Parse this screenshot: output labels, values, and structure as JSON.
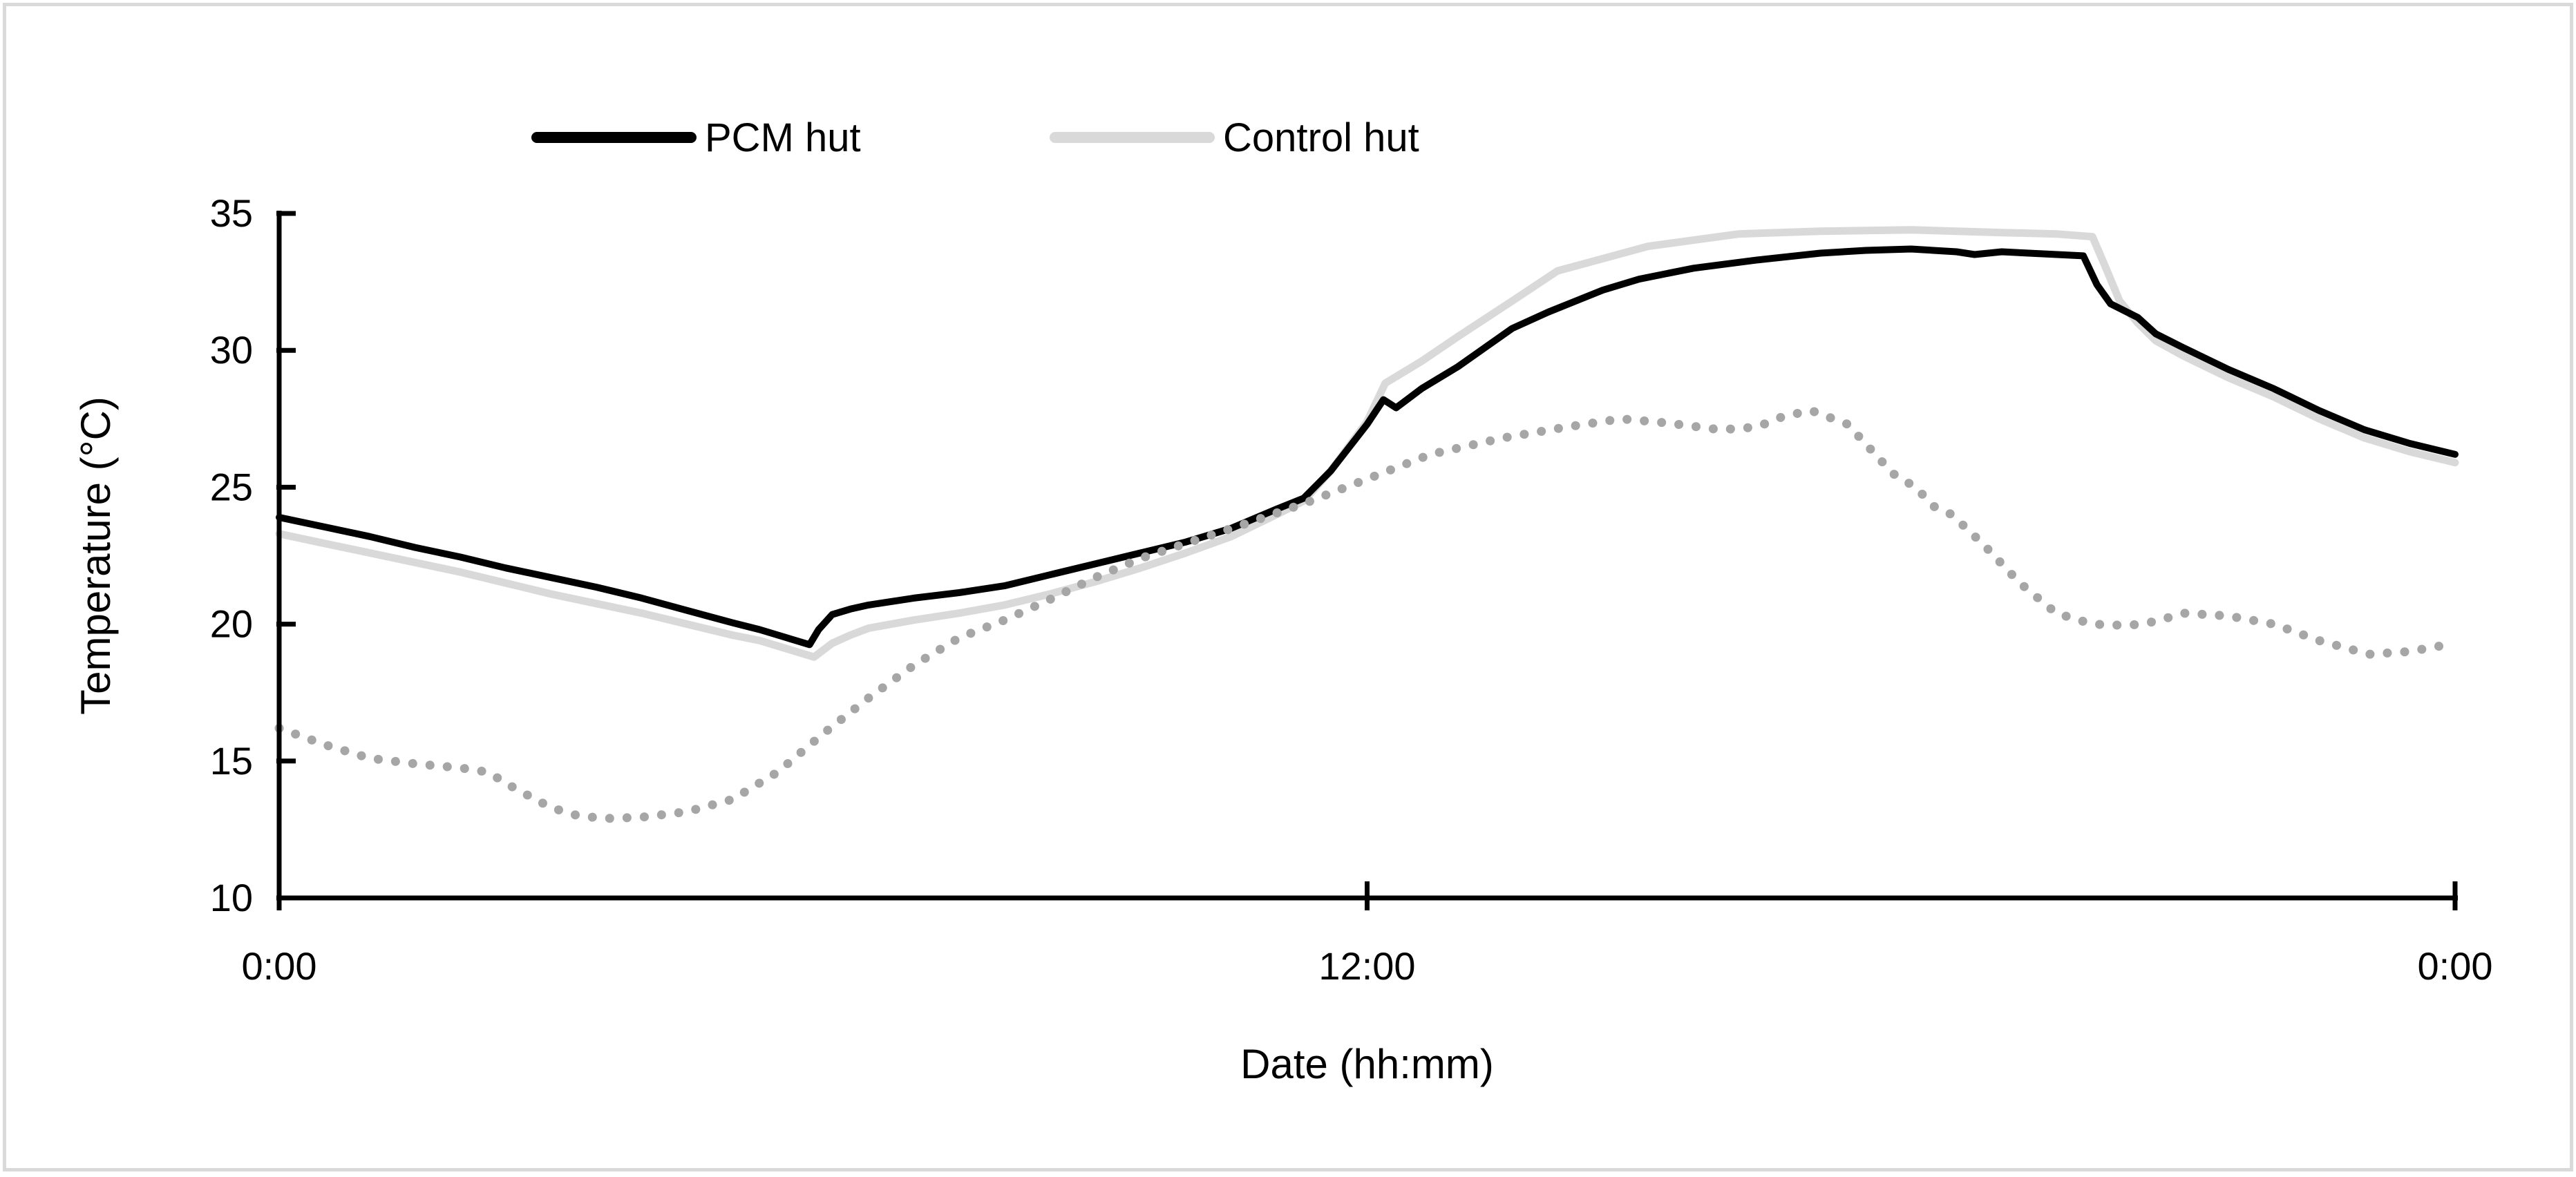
{
  "figure": {
    "background": "#ffffff",
    "border_color": "#d9d9d9"
  },
  "legend": {
    "items": [
      {
        "label": "PCM hut",
        "color": "#000000",
        "style": "solid"
      },
      {
        "label": "Control hut",
        "color": "#d9d9d9",
        "style": "solid"
      }
    ]
  },
  "chart_data": {
    "type": "line",
    "title": "",
    "xlabel": "Date (hh:mm)",
    "ylabel": "Temperature (°C)",
    "xlim_hours": [
      0,
      24
    ],
    "ylim": [
      10,
      35
    ],
    "grid": false,
    "legend_position": "top",
    "x_ticks": [
      {
        "t": 0,
        "label": "0:00"
      },
      {
        "t": 12,
        "label": "12:00"
      },
      {
        "t": 24,
        "label": "0:00"
      }
    ],
    "y_ticks": [
      {
        "v": 10,
        "label": "10"
      },
      {
        "v": 15,
        "label": "15"
      },
      {
        "v": 20,
        "label": "20"
      },
      {
        "v": 25,
        "label": "25"
      },
      {
        "v": 30,
        "label": "30"
      },
      {
        "v": 35,
        "label": "35"
      }
    ],
    "series": [
      {
        "name": "Control hut",
        "color": "#d9d9d9",
        "line_style": "solid",
        "stroke_width": 11,
        "in_legend": true,
        "points": [
          [
            0,
            23.3
          ],
          [
            0.5,
            22.95
          ],
          [
            1,
            22.6
          ],
          [
            1.5,
            22.25
          ],
          [
            2,
            21.9
          ],
          [
            2.5,
            21.5
          ],
          [
            3,
            21.1
          ],
          [
            3.5,
            20.75
          ],
          [
            4,
            20.4
          ],
          [
            4.5,
            20.0
          ],
          [
            5,
            19.6
          ],
          [
            5.3,
            19.4
          ],
          [
            5.6,
            19.1
          ],
          [
            5.9,
            18.8
          ],
          [
            6.1,
            19.3
          ],
          [
            6.3,
            19.6
          ],
          [
            6.5,
            19.85
          ],
          [
            7,
            20.15
          ],
          [
            7.5,
            20.4
          ],
          [
            8,
            20.7
          ],
          [
            8.5,
            21.1
          ],
          [
            9,
            21.55
          ],
          [
            9.5,
            22.05
          ],
          [
            10,
            22.6
          ],
          [
            10.5,
            23.2
          ],
          [
            11,
            24.0
          ],
          [
            11.3,
            24.5
          ],
          [
            11.6,
            25.6
          ],
          [
            12,
            27.4
          ],
          [
            12.2,
            28.8
          ],
          [
            12.6,
            29.6
          ],
          [
            13,
            30.5
          ],
          [
            13.6,
            31.8
          ],
          [
            14.1,
            32.9
          ],
          [
            15.1,
            33.8
          ],
          [
            16.1,
            34.25
          ],
          [
            17,
            34.35
          ],
          [
            18,
            34.4
          ],
          [
            19,
            34.3
          ],
          [
            19.6,
            34.25
          ],
          [
            20.0,
            34.15
          ],
          [
            20.15,
            33.0
          ],
          [
            20.3,
            31.8
          ],
          [
            20.5,
            31.0
          ],
          [
            20.7,
            30.35
          ],
          [
            21,
            29.8
          ],
          [
            21.5,
            29.0
          ],
          [
            22,
            28.3
          ],
          [
            22.5,
            27.5
          ],
          [
            23,
            26.8
          ],
          [
            23.5,
            26.3
          ],
          [
            24,
            25.9
          ]
        ]
      },
      {
        "name": "PCM hut",
        "color": "#000000",
        "line_style": "solid",
        "stroke_width": 10,
        "in_legend": true,
        "points": [
          [
            0,
            23.9
          ],
          [
            0.5,
            23.55
          ],
          [
            1,
            23.2
          ],
          [
            1.5,
            22.8
          ],
          [
            2,
            22.45
          ],
          [
            2.5,
            22.05
          ],
          [
            3,
            21.7
          ],
          [
            3.5,
            21.35
          ],
          [
            4,
            20.95
          ],
          [
            4.5,
            20.5
          ],
          [
            5,
            20.05
          ],
          [
            5.3,
            19.8
          ],
          [
            5.6,
            19.5
          ],
          [
            5.85,
            19.25
          ],
          [
            5.95,
            19.8
          ],
          [
            6.1,
            20.35
          ],
          [
            6.3,
            20.55
          ],
          [
            6.5,
            20.7
          ],
          [
            7,
            20.95
          ],
          [
            7.5,
            21.15
          ],
          [
            8,
            21.4
          ],
          [
            8.5,
            21.8
          ],
          [
            9,
            22.2
          ],
          [
            9.5,
            22.6
          ],
          [
            10,
            23.0
          ],
          [
            10.5,
            23.5
          ],
          [
            11,
            24.2
          ],
          [
            11.3,
            24.6
          ],
          [
            11.6,
            25.6
          ],
          [
            12,
            27.3
          ],
          [
            12.18,
            28.2
          ],
          [
            12.32,
            27.9
          ],
          [
            12.6,
            28.6
          ],
          [
            13,
            29.4
          ],
          [
            13.6,
            30.8
          ],
          [
            14,
            31.4
          ],
          [
            14.6,
            32.2
          ],
          [
            15,
            32.6
          ],
          [
            15.6,
            33.0
          ],
          [
            16.3,
            33.3
          ],
          [
            17,
            33.55
          ],
          [
            17.5,
            33.65
          ],
          [
            18,
            33.7
          ],
          [
            18.5,
            33.6
          ],
          [
            18.7,
            33.5
          ],
          [
            19,
            33.6
          ],
          [
            19.3,
            33.55
          ],
          [
            19.9,
            33.45
          ],
          [
            20.05,
            32.4
          ],
          [
            20.2,
            31.7
          ],
          [
            20.5,
            31.2
          ],
          [
            20.7,
            30.6
          ],
          [
            21,
            30.1
          ],
          [
            21.5,
            29.3
          ],
          [
            22,
            28.6
          ],
          [
            22.5,
            27.8
          ],
          [
            23,
            27.1
          ],
          [
            23.5,
            26.6
          ],
          [
            24,
            26.2
          ]
        ]
      },
      {
        "name": "",
        "color": "#a6a6a6",
        "line_style": "dotted",
        "stroke_width": 13,
        "in_legend": false,
        "points": [
          [
            0,
            16.2
          ],
          [
            0.5,
            15.6
          ],
          [
            1,
            15.1
          ],
          [
            1.5,
            14.9
          ],
          [
            2,
            14.75
          ],
          [
            2.3,
            14.6
          ],
          [
            2.6,
            14.0
          ],
          [
            3,
            13.3
          ],
          [
            3.3,
            13.0
          ],
          [
            3.6,
            12.9
          ],
          [
            4,
            12.95
          ],
          [
            4.5,
            13.15
          ],
          [
            5,
            13.6
          ],
          [
            5.5,
            14.6
          ],
          [
            6,
            16.0
          ],
          [
            6.5,
            17.3
          ],
          [
            7,
            18.5
          ],
          [
            7.5,
            19.5
          ],
          [
            8,
            20.15
          ],
          [
            8.5,
            20.9
          ],
          [
            9,
            21.7
          ],
          [
            9.5,
            22.4
          ],
          [
            10,
            22.95
          ],
          [
            10.6,
            23.6
          ],
          [
            11.3,
            24.4
          ],
          [
            12,
            25.3
          ],
          [
            12.7,
            26.2
          ],
          [
            13.5,
            26.8
          ],
          [
            14.2,
            27.2
          ],
          [
            14.8,
            27.5
          ],
          [
            15.3,
            27.35
          ],
          [
            15.9,
            27.1
          ],
          [
            16.3,
            27.2
          ],
          [
            16.6,
            27.6
          ],
          [
            16.9,
            27.8
          ],
          [
            17.3,
            27.3
          ],
          [
            17.55,
            26.4
          ],
          [
            17.8,
            25.5
          ],
          [
            18.05,
            25.0
          ],
          [
            18.25,
            24.3
          ],
          [
            18.45,
            24.0
          ],
          [
            18.8,
            22.9
          ],
          [
            19.2,
            21.5
          ],
          [
            19.6,
            20.4
          ],
          [
            20,
            20.0
          ],
          [
            20.4,
            19.95
          ],
          [
            20.7,
            20.1
          ],
          [
            21,
            20.4
          ],
          [
            21.5,
            20.3
          ],
          [
            22,
            20.0
          ],
          [
            22.5,
            19.4
          ],
          [
            23.05,
            18.9
          ],
          [
            23.5,
            19.0
          ],
          [
            24,
            19.3
          ]
        ]
      }
    ]
  }
}
